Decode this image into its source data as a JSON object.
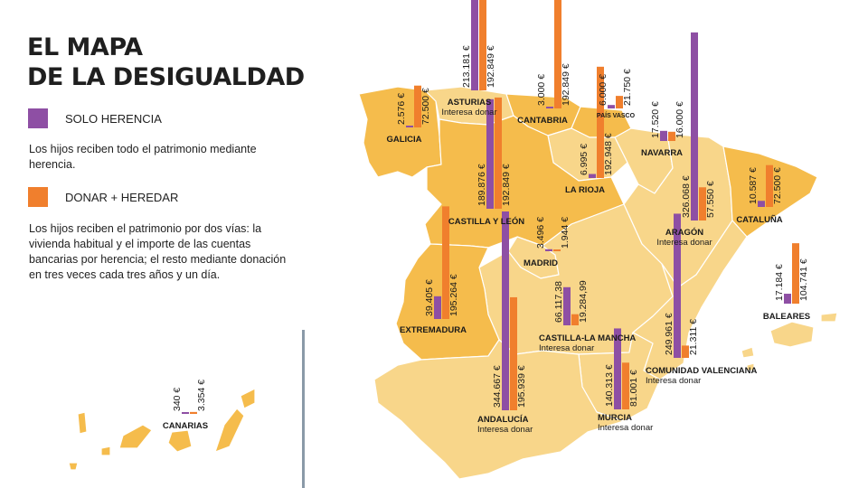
{
  "title": {
    "line1": "EL MAPA",
    "line2": "DE LA DESIGUALDAD"
  },
  "legend": {
    "solo_herencia": {
      "label": "SOLO HERENCIA",
      "color": "#8e4fa4",
      "description": "Los hijos reciben todo el patrimonio mediante herencia."
    },
    "donar_heredar": {
      "label": "DONAR + HEREDAR",
      "color": "#f07f2d",
      "description": "Los hijos reciben el patrimonio por dos vías: la vivienda habitual y el importe de las cuentas bancarias por herencia; el resto mediante donación en tres veces cada tres años y un día."
    }
  },
  "map_colors": {
    "light": "#f8d68a",
    "dark": "#f5bc4c",
    "border": "#ffffff"
  },
  "regions": [
    {
      "name": "GALICIA",
      "note": "",
      "herencia": {
        "label": "2.576 €",
        "value": 2576
      },
      "donar": {
        "label": "72.500 €",
        "value": 72500
      }
    },
    {
      "name": "ASTURIAS",
      "note": "Interesa donar",
      "herencia": {
        "label": "213.181 €",
        "value": 213181
      },
      "donar": {
        "label": "192.849 €",
        "value": 192849
      }
    },
    {
      "name": "CANTABRIA",
      "note": "",
      "herencia": {
        "label": "3.000 €",
        "value": 3000
      },
      "donar": {
        "label": "192.849 €",
        "value": 192849
      }
    },
    {
      "name": "PAÍS VASCO",
      "note": "",
      "herencia": {
        "label": "6.000 €",
        "value": 6000
      },
      "donar": {
        "label": "21.750 €",
        "value": 21750
      }
    },
    {
      "name": "NAVARRA",
      "note": "",
      "herencia": {
        "label": "17.520 €",
        "value": 17520
      },
      "donar": {
        "label": "16.000 €",
        "value": 16000
      }
    },
    {
      "name": "LA RIOJA",
      "note": "",
      "herencia": {
        "label": "6.995 €",
        "value": 6995
      },
      "donar": {
        "label": "192.948 €",
        "value": 192948
      }
    },
    {
      "name": "CASTILLA Y LEÓN",
      "note": "",
      "herencia": {
        "label": "189.876 €",
        "value": 189876
      },
      "donar": {
        "label": "192.849 €",
        "value": 192849
      }
    },
    {
      "name": "ARAGÓN",
      "note": "Interesa donar",
      "herencia": {
        "label": "326.068 €",
        "value": 326068
      },
      "donar": {
        "label": "57.550 €",
        "value": 57550
      }
    },
    {
      "name": "CATALUÑA",
      "note": "",
      "herencia": {
        "label": "10.587 €",
        "value": 10587
      },
      "donar": {
        "label": "72.500 €",
        "value": 72500
      }
    },
    {
      "name": "MADRID",
      "note": "",
      "herencia": {
        "label": "3.496 €",
        "value": 3496
      },
      "donar": {
        "label": "1.944 €",
        "value": 1944
      }
    },
    {
      "name": "EXTREMADURA",
      "note": "",
      "herencia": {
        "label": "39.405 €",
        "value": 39405
      },
      "donar": {
        "label": "195.264 €",
        "value": 195264
      }
    },
    {
      "name": "CASTILLA-LA MANCHA",
      "note": "Interesa donar",
      "herencia": {
        "label": "66.117,38",
        "value": 66117.38
      },
      "donar": {
        "label": "19.284,99",
        "value": 19284.99
      }
    },
    {
      "name": "COMUNIDAD VALENCIANA",
      "note": "Interesa donar",
      "herencia": {
        "label": "249.961 €",
        "value": 249961
      },
      "donar": {
        "label": "21.311 €",
        "value": 21311
      }
    },
    {
      "name": "BALEARES",
      "note": "",
      "herencia": {
        "label": "17.184 €",
        "value": 17184
      },
      "donar": {
        "label": "104.741 €",
        "value": 104741
      }
    },
    {
      "name": "ANDALUCÍA",
      "note": "Interesa donar",
      "herencia": {
        "label": "344.667 €",
        "value": 344667
      },
      "donar": {
        "label": "195.939 €",
        "value": 195939
      }
    },
    {
      "name": "MURCIA",
      "note": "Interesa donar",
      "herencia": {
        "label": "140.313 €",
        "value": 140313
      },
      "donar": {
        "label": "81.001 €",
        "value": 81001
      }
    },
    {
      "name": "CANARIAS",
      "note": "",
      "herencia": {
        "label": "340 €",
        "value": 340
      },
      "donar": {
        "label": "3.354 €",
        "value": 3354
      }
    }
  ]
}
